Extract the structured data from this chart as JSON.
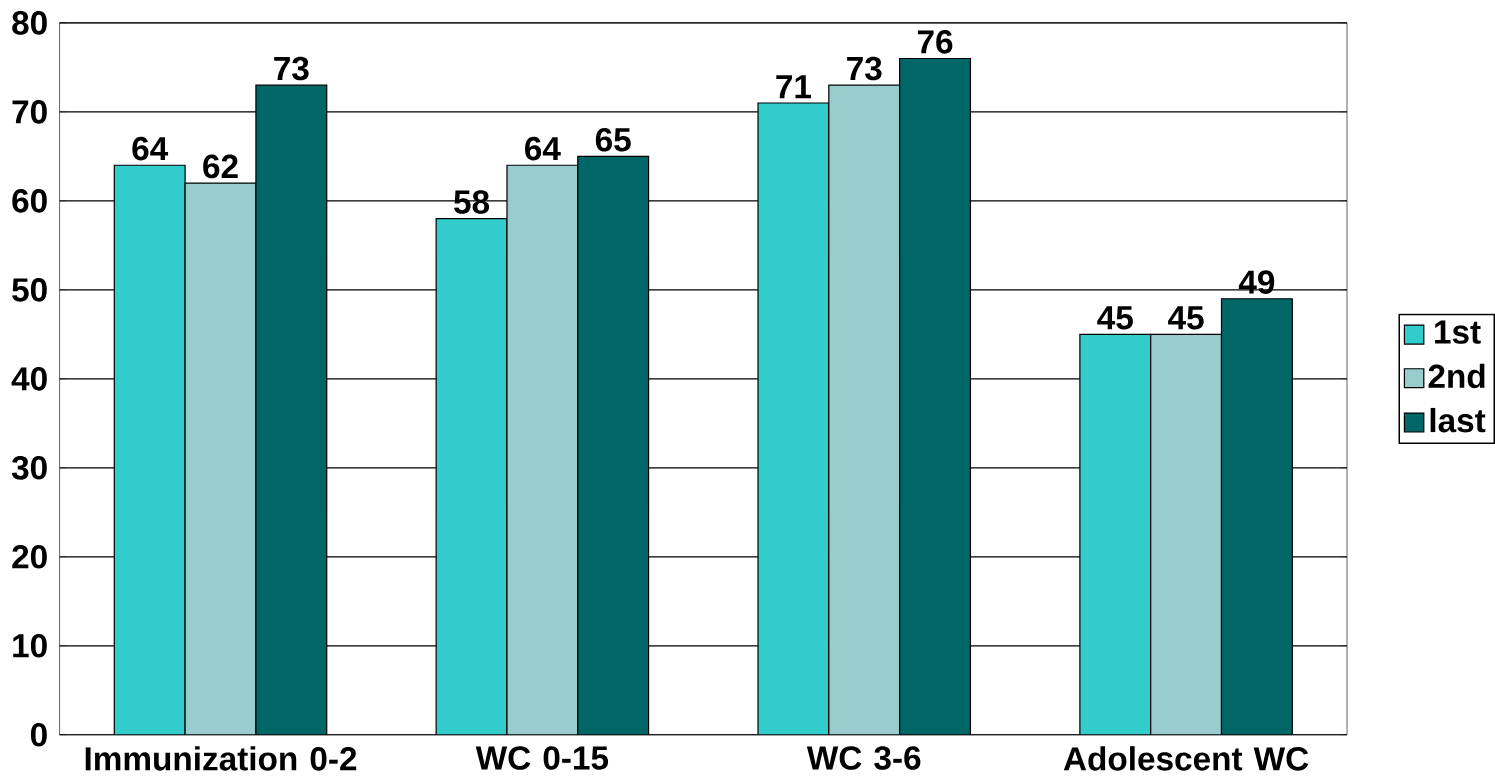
{
  "chart_data": {
    "type": "bar",
    "categories": [
      "Immunization 0-2",
      "WC 0-15",
      "WC 3-6",
      "Adolescent WC"
    ],
    "series": [
      {
        "name": "1st",
        "color": "#33cccc",
        "values": [
          64,
          58,
          71,
          45
        ]
      },
      {
        "name": "2nd",
        "color": "#99cccc",
        "values": [
          62,
          64,
          73,
          45
        ]
      },
      {
        "name": "last",
        "color": "#006666",
        "values": [
          73,
          65,
          76,
          49
        ]
      }
    ],
    "ylim": [
      0,
      80
    ],
    "yticks": [
      0,
      10,
      20,
      30,
      40,
      50,
      60,
      70,
      80
    ],
    "grid": "y",
    "legend": "right",
    "data_labels": true
  }
}
